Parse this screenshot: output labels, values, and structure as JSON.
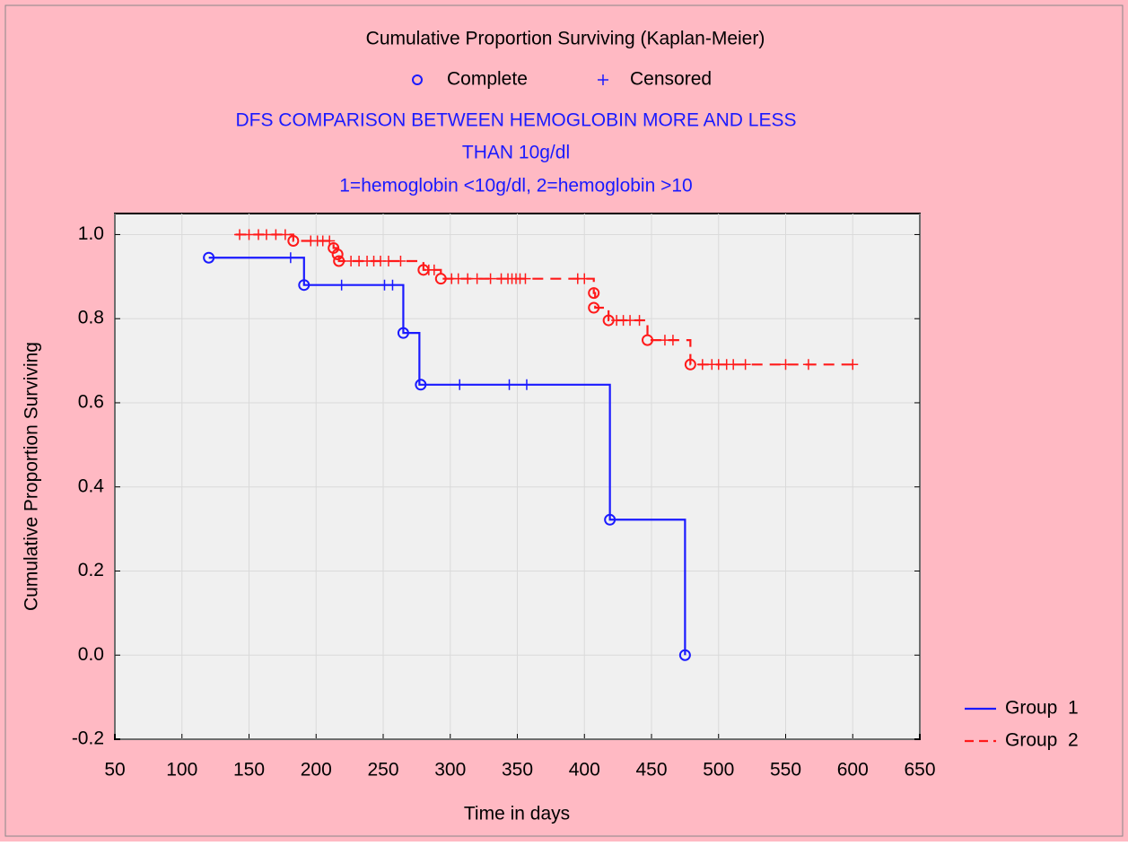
{
  "chart_data": {
    "type": "step",
    "title": "Cumulative Proportion Surviving (Kaplan-Meier)",
    "marker_legend": [
      "Complete",
      "Censored"
    ],
    "subtitle": [
      "DFS COMPARISON BETWEEN HEMOGLOBIN MORE AND LESS",
      "THAN 10g/dl",
      "1=hemoglobin <10g/dl, 2=hemoglobin >10"
    ],
    "xlabel": "Time in days",
    "ylabel": "Cumulative Proportion Surviving",
    "xlim": [
      50,
      650
    ],
    "xticks": [
      50,
      100,
      150,
      200,
      250,
      300,
      350,
      400,
      450,
      500,
      550,
      600,
      650
    ],
    "ylim": [
      -0.2,
      1.05
    ],
    "yticks": [
      -0.2,
      {
        "value": 0,
        "label": "0.0"
      },
      0.2,
      0.4,
      0.6,
      0.8,
      {
        "value": 1,
        "label": "1.0"
      }
    ],
    "grid": true,
    "legend": "bottom-right",
    "series": [
      {
        "name": "Group  1",
        "color": "#1a1aff",
        "dashed": false,
        "x": [
          120,
          191,
          265,
          277,
          419,
          475
        ],
        "values": [
          0.945,
          0.88,
          0.766,
          0.643,
          0.322,
          0
        ],
        "complete": {
          "x": [
            120,
            191,
            265,
            278,
            419,
            475
          ],
          "y": [
            0.945,
            0.88,
            0.766,
            0.643,
            0.322,
            0
          ]
        },
        "censored": {
          "x": [
            181,
            219,
            251,
            257,
            307,
            344,
            357
          ],
          "y": [
            0.945,
            0.88,
            0.88,
            0.88,
            0.643,
            0.643,
            0.643
          ]
        }
      },
      {
        "name": "Group  2",
        "color": "#ff1a1a",
        "dashed": true,
        "x": [
          140,
          183,
          213,
          216,
          217,
          280,
          293,
          407,
          408,
          418,
          447,
          479,
          600
        ],
        "values": [
          1.0,
          0.985,
          0.968,
          0.953,
          0.937,
          0.916,
          0.895,
          0.861,
          0.826,
          0.796,
          0.749,
          0.691,
          0.691
        ],
        "complete": {
          "x": [
            183,
            213,
            216,
            217,
            280,
            293,
            407,
            407,
            418,
            447,
            479
          ],
          "y": [
            0.985,
            0.968,
            0.953,
            0.937,
            0.916,
            0.895,
            0.861,
            0.826,
            0.796,
            0.749,
            0.691
          ]
        },
        "censored": {
          "x": [
            143,
            150,
            157,
            163,
            170,
            177,
            196,
            201,
            205,
            210,
            226,
            232,
            238,
            243,
            248,
            254,
            263,
            284,
            288,
            301,
            306,
            313,
            320,
            330,
            338,
            343,
            346,
            349,
            352,
            356,
            395,
            400,
            424,
            429,
            434,
            441,
            460,
            466,
            488,
            495,
            500,
            506,
            511,
            520,
            550,
            567,
            600
          ],
          "y": [
            1,
            1,
            1,
            1,
            1,
            1,
            0.985,
            0.985,
            0.985,
            0.985,
            0.937,
            0.937,
            0.937,
            0.937,
            0.937,
            0.937,
            0.937,
            0.916,
            0.916,
            0.895,
            0.895,
            0.895,
            0.895,
            0.895,
            0.895,
            0.895,
            0.895,
            0.895,
            0.895,
            0.895,
            0.895,
            0.895,
            0.796,
            0.796,
            0.796,
            0.796,
            0.749,
            0.749,
            0.691,
            0.691,
            0.691,
            0.691,
            0.691,
            0.691,
            0.691,
            0.691,
            0.691
          ]
        }
      }
    ]
  }
}
